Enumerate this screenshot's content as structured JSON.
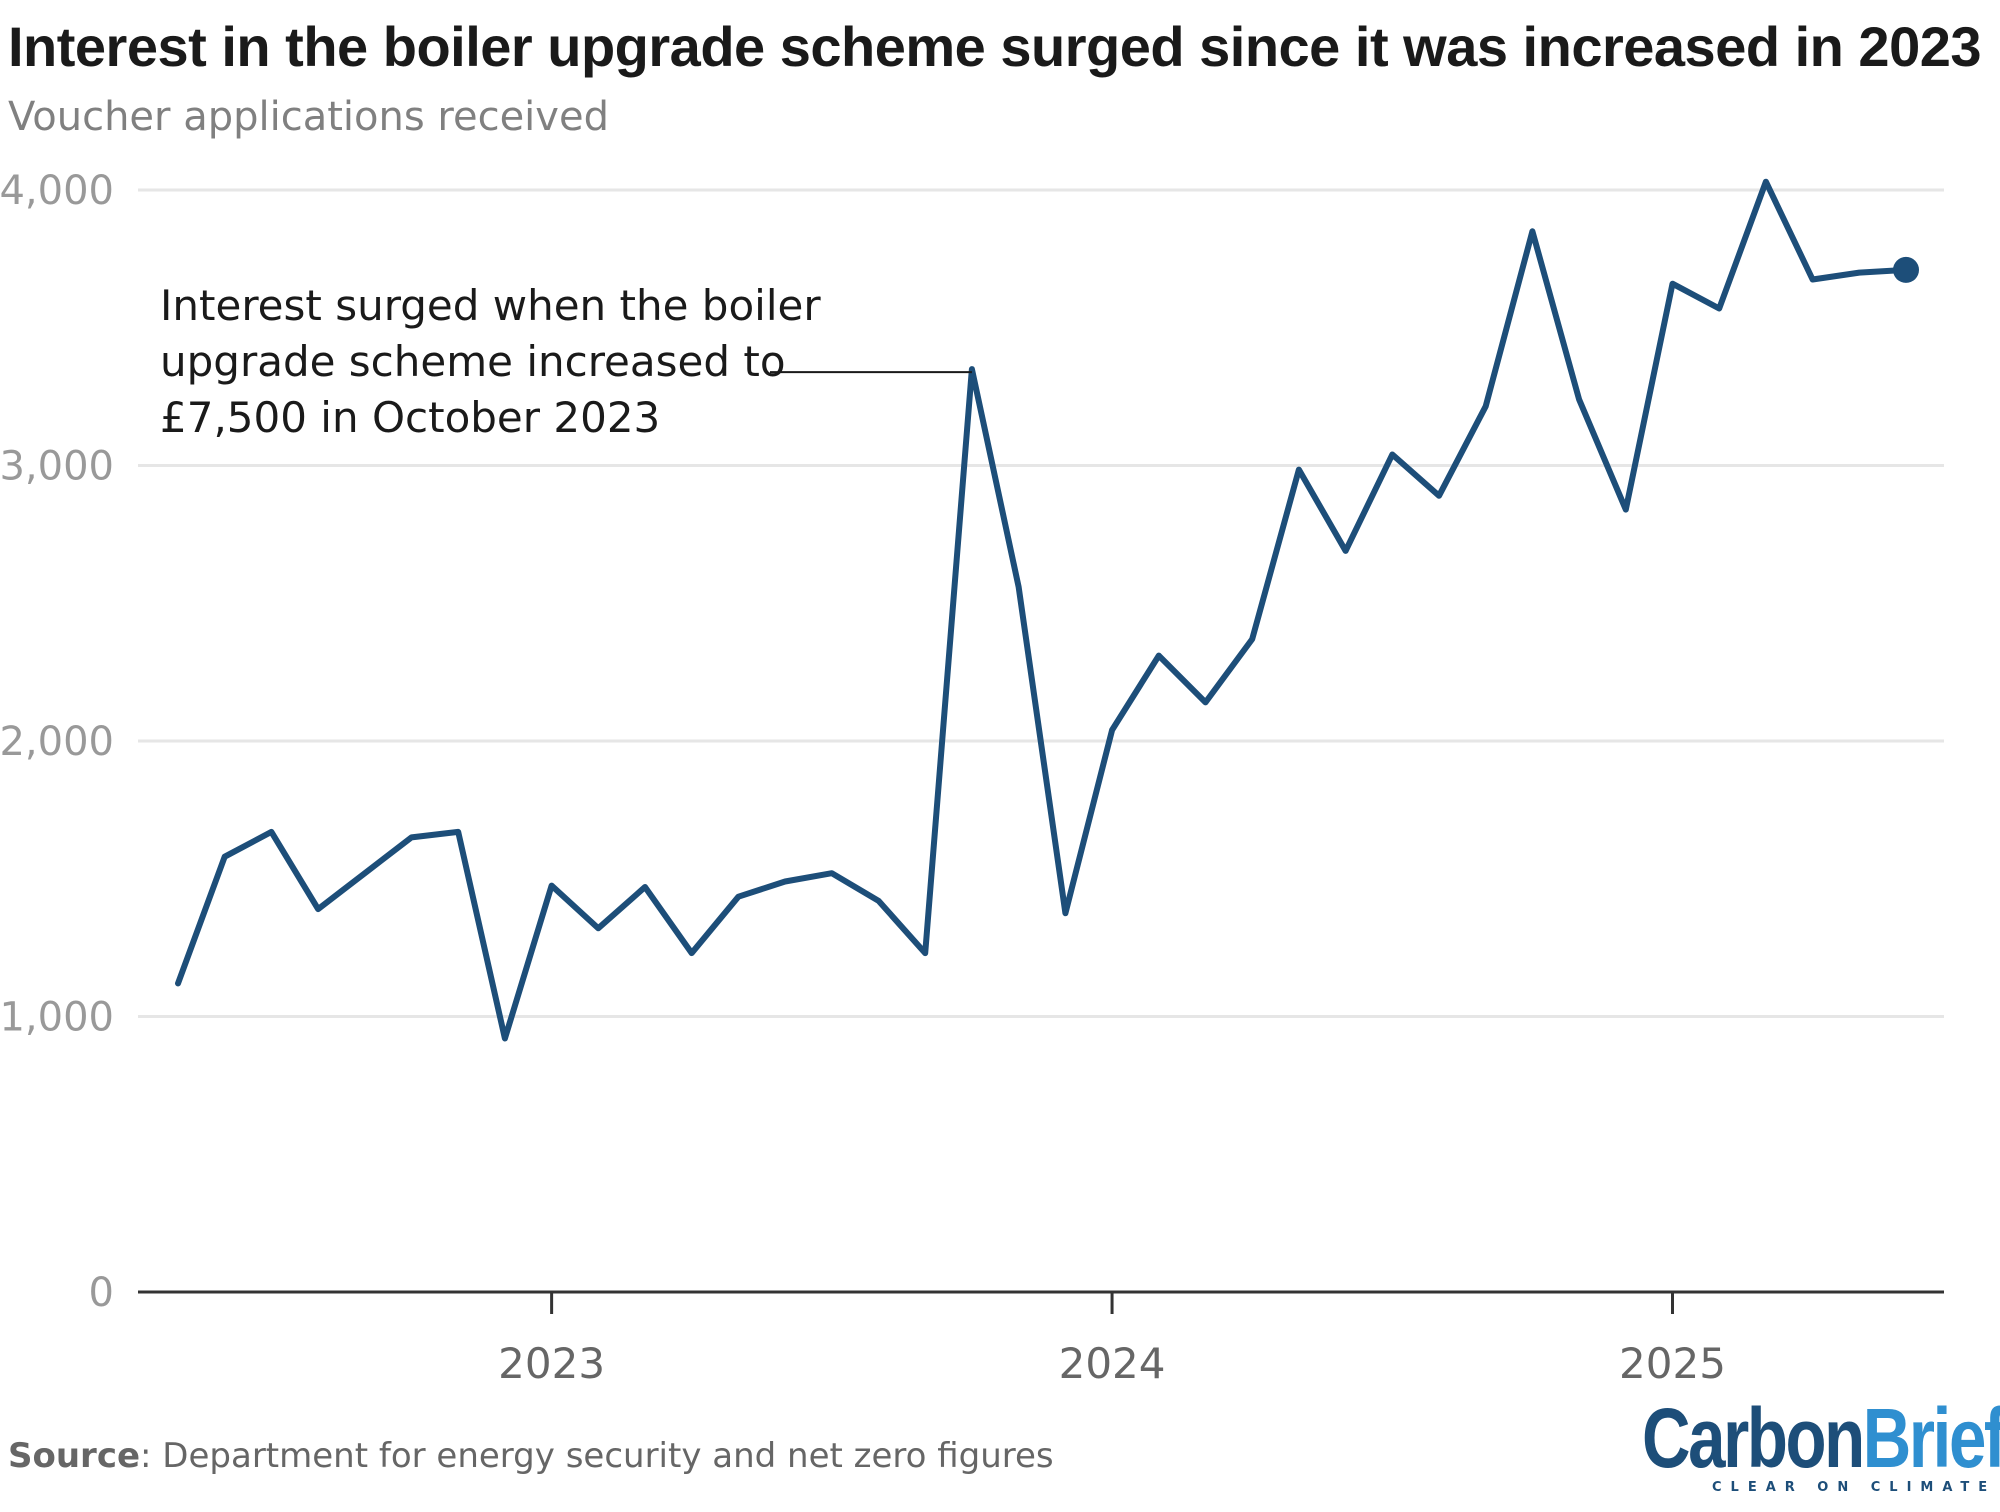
{
  "header": {
    "title": "Interest in the boiler upgrade scheme surged since it was increased in 2023",
    "subtitle": "Voucher applications received"
  },
  "footer": {
    "source_label": "Source",
    "source_text": ": Department for energy security and net zero figures",
    "logo_brand_part1": "Carbon",
    "logo_brand_part2": "Brief",
    "logo_tagline": "CLEAR ON CLIMATE"
  },
  "colors": {
    "line": "#1d4e79",
    "grid": "#e6e6e6",
    "axis": "#333333",
    "tick_label": "#999999",
    "annotation_text": "#1a1a1a"
  },
  "chart_data": {
    "type": "line",
    "title": "Interest in the boiler upgrade scheme surged since it was increased in 2023",
    "subtitle": "Voucher applications received",
    "xlabel": "",
    "ylabel": "",
    "ylim": [
      0,
      4000
    ],
    "yticks": [
      0,
      1000,
      2000,
      3000,
      4000
    ],
    "ytick_labels": [
      "0",
      "1,000",
      "2,000",
      "3,000",
      "4,000"
    ],
    "x_start": "2022-05",
    "x_end": "2025-06",
    "xticks": [
      "2023-01",
      "2024-01",
      "2025-01"
    ],
    "xtick_labels": [
      "2023",
      "2024",
      "2025"
    ],
    "grid": true,
    "series": [
      {
        "months": [
          "2022-05",
          "2022-06",
          "2022-07",
          "2022-08",
          "2022-09",
          "2022-10",
          "2022-11",
          "2022-12",
          "2023-01",
          "2023-02",
          "2023-03",
          "2023-04",
          "2023-05",
          "2023-06",
          "2023-07",
          "2023-08",
          "2023-09",
          "2023-10",
          "2023-11",
          "2023-12",
          "2024-01",
          "2024-02",
          "2024-03",
          "2024-04",
          "2024-05",
          "2024-06",
          "2024-07",
          "2024-08",
          "2024-09",
          "2024-10",
          "2024-11",
          "2024-12",
          "2025-01",
          "2025-02",
          "2025-03",
          "2025-04",
          "2025-05",
          "2025-06"
        ],
        "values": [
          1120,
          1580,
          1670,
          1390,
          1520,
          1650,
          1670,
          920,
          1475,
          1320,
          1470,
          1230,
          1435,
          1490,
          1520,
          1420,
          1230,
          3350,
          2560,
          1375,
          2040,
          2310,
          2140,
          2370,
          2985,
          2690,
          3040,
          2890,
          3215,
          3850,
          3240,
          2840,
          3660,
          3570,
          4030,
          3675,
          3700,
          3710
        ]
      }
    ],
    "annotations": [
      {
        "lines": [
          "Interest surged when the boiler",
          "upgrade scheme increased to",
          "£7,500 in October 2023"
        ],
        "target_month": "2023-10"
      }
    ]
  }
}
